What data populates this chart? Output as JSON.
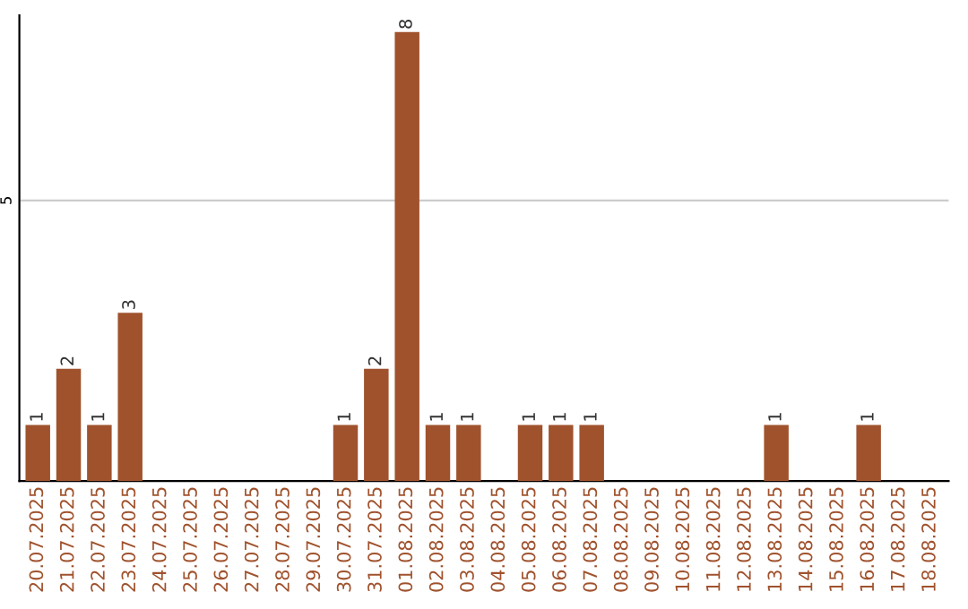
{
  "chart_data": {
    "type": "bar",
    "categories": [
      "20.07.2025",
      "21.07.2025",
      "22.07.2025",
      "23.07.2025",
      "24.07.2025",
      "25.07.2025",
      "26.07.2025",
      "27.07.2025",
      "28.07.2025",
      "29.07.2025",
      "30.07.2025",
      "31.07.2025",
      "01.08.2025",
      "02.08.2025",
      "03.08.2025",
      "04.08.2025",
      "05.08.2025",
      "06.08.2025",
      "07.08.2025",
      "08.08.2025",
      "09.08.2025",
      "10.08.2025",
      "11.08.2025",
      "12.08.2025",
      "13.08.2025",
      "14.08.2025",
      "15.08.2025",
      "16.08.2025",
      "17.08.2025",
      "18.08.2025"
    ],
    "values": [
      1,
      2,
      1,
      3,
      0,
      0,
      0,
      0,
      0,
      0,
      1,
      2,
      8,
      1,
      1,
      0,
      1,
      1,
      1,
      0,
      0,
      0,
      0,
      0,
      1,
      0,
      0,
      1,
      0,
      0
    ],
    "value_labels": [
      "1",
      "2",
      "1",
      "3",
      null,
      null,
      null,
      null,
      null,
      null,
      "1",
      "2",
      "8",
      "1",
      "1",
      null,
      "1",
      "1",
      "1",
      null,
      null,
      null,
      null,
      null,
      "1",
      null,
      null,
      "1",
      null,
      null
    ],
    "color": "#a0522d",
    "ylim": [
      0,
      8.3
    ],
    "yticks": [
      5
    ],
    "grid": "y"
  }
}
